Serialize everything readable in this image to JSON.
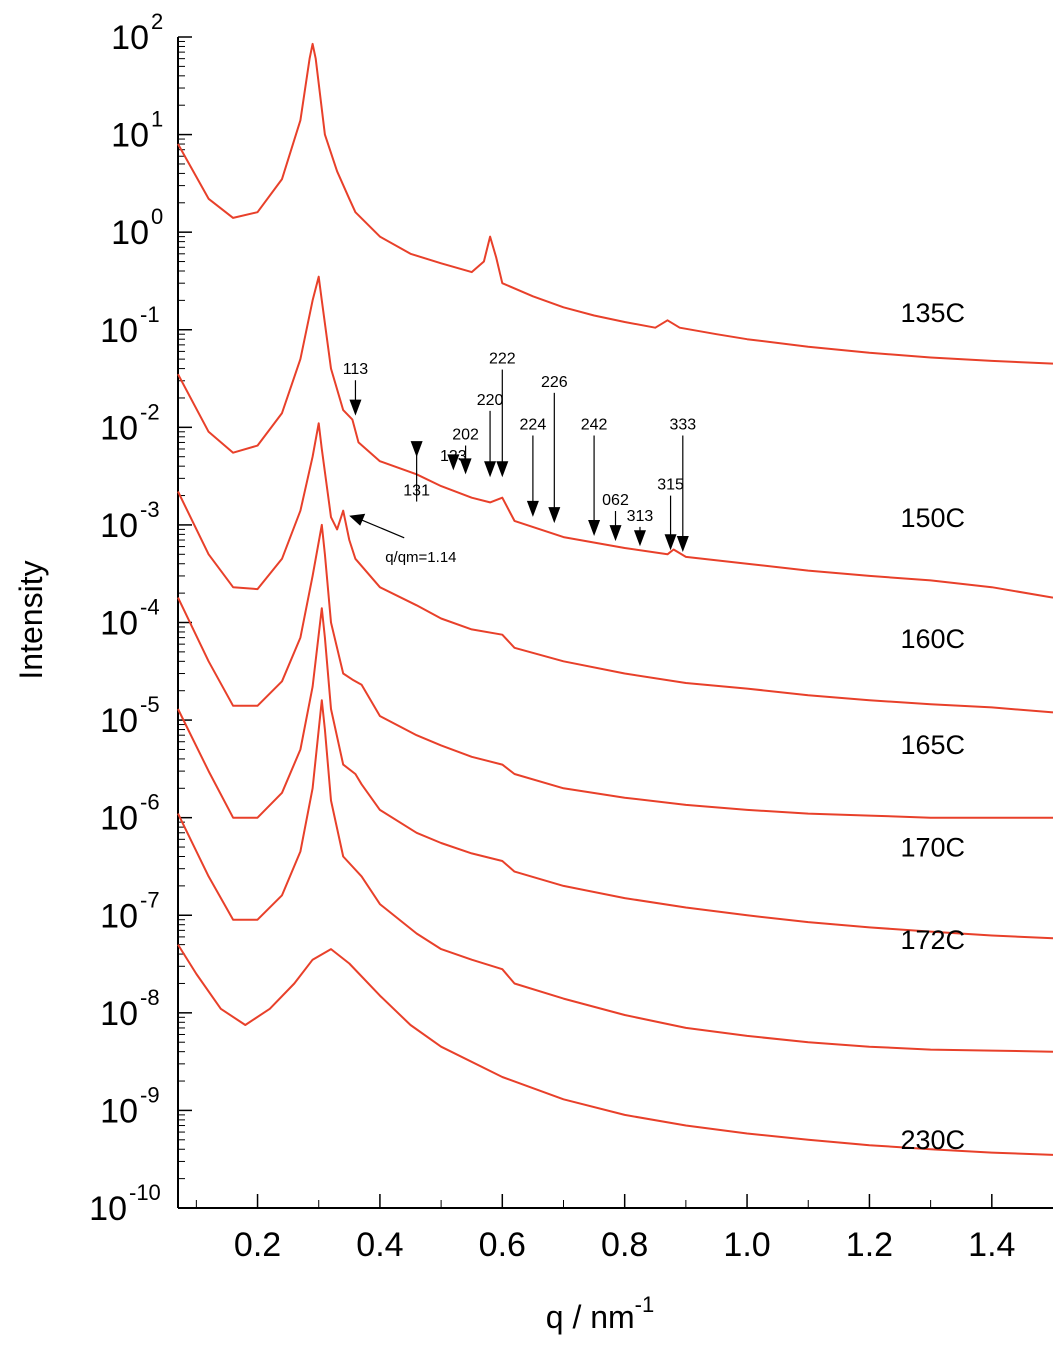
{
  "chart_data": {
    "type": "line",
    "xlabel": "q / nm",
    "xlabel_exp": "-1",
    "ylabel": "Intensity",
    "xlim": [
      0.07,
      1.5
    ],
    "ylim": [
      1e-10,
      100
    ],
    "yscale": "log",
    "grid": false,
    "line_color": "#e8402a",
    "x_ticks": [
      {
        "value": 0.2,
        "label": "0.2"
      },
      {
        "value": 0.4,
        "label": "0.4"
      },
      {
        "value": 0.6,
        "label": "0.6"
      },
      {
        "value": 0.8,
        "label": "0.8"
      },
      {
        "value": 1.0,
        "label": "1.0"
      },
      {
        "value": 1.2,
        "label": "1.2"
      },
      {
        "value": 1.4,
        "label": "1.4"
      }
    ],
    "y_ticks": [
      {
        "exp": 2,
        "base": "10",
        "sup": "2"
      },
      {
        "exp": 1,
        "base": "10",
        "sup": "1"
      },
      {
        "exp": 0,
        "base": "10",
        "sup": "0"
      },
      {
        "exp": -1,
        "base": "10",
        "sup": "-1"
      },
      {
        "exp": -2,
        "base": "10",
        "sup": "-2"
      },
      {
        "exp": -3,
        "base": "10",
        "sup": "-3"
      },
      {
        "exp": -4,
        "base": "10",
        "sup": "-4"
      },
      {
        "exp": -5,
        "base": "10",
        "sup": "-5"
      },
      {
        "exp": -6,
        "base": "10",
        "sup": "-6"
      },
      {
        "exp": -7,
        "base": "10",
        "sup": "-7"
      },
      {
        "exp": -8,
        "base": "10",
        "sup": "-8"
      },
      {
        "exp": -9,
        "base": "10",
        "sup": "-9"
      },
      {
        "exp": -10,
        "base": "10",
        "sup": "-10"
      }
    ],
    "series": [
      {
        "name": "135C",
        "label_y": 0.12,
        "points": [
          [
            0.07,
            8
          ],
          [
            0.12,
            2.2
          ],
          [
            0.16,
            1.4
          ],
          [
            0.2,
            1.6
          ],
          [
            0.24,
            3.5
          ],
          [
            0.27,
            14
          ],
          [
            0.285,
            60
          ],
          [
            0.29,
            85
          ],
          [
            0.295,
            60
          ],
          [
            0.31,
            10
          ],
          [
            0.33,
            4.2
          ],
          [
            0.35,
            2.2
          ],
          [
            0.36,
            1.6
          ],
          [
            0.4,
            0.9
          ],
          [
            0.45,
            0.6
          ],
          [
            0.5,
            0.48
          ],
          [
            0.55,
            0.39
          ],
          [
            0.57,
            0.5
          ],
          [
            0.58,
            0.9
          ],
          [
            0.59,
            0.55
          ],
          [
            0.6,
            0.3
          ],
          [
            0.65,
            0.22
          ],
          [
            0.7,
            0.17
          ],
          [
            0.75,
            0.14
          ],
          [
            0.8,
            0.12
          ],
          [
            0.85,
            0.105
          ],
          [
            0.87,
            0.125
          ],
          [
            0.89,
            0.105
          ],
          [
            0.95,
            0.09
          ],
          [
            1.0,
            0.08
          ],
          [
            1.1,
            0.067
          ],
          [
            1.2,
            0.058
          ],
          [
            1.3,
            0.052
          ],
          [
            1.4,
            0.048
          ],
          [
            1.5,
            0.045
          ]
        ]
      },
      {
        "name": "150C",
        "label_y": 0.00095,
        "points": [
          [
            0.07,
            0.035
          ],
          [
            0.12,
            0.009
          ],
          [
            0.16,
            0.0055
          ],
          [
            0.2,
            0.0065
          ],
          [
            0.24,
            0.014
          ],
          [
            0.27,
            0.05
          ],
          [
            0.29,
            0.2
          ],
          [
            0.3,
            0.35
          ],
          [
            0.305,
            0.2
          ],
          [
            0.32,
            0.04
          ],
          [
            0.34,
            0.015
          ],
          [
            0.355,
            0.012
          ],
          [
            0.365,
            0.007
          ],
          [
            0.4,
            0.0045
          ],
          [
            0.46,
            0.0033
          ],
          [
            0.5,
            0.0025
          ],
          [
            0.55,
            0.0019
          ],
          [
            0.58,
            0.0017
          ],
          [
            0.6,
            0.0019
          ],
          [
            0.62,
            0.0011
          ],
          [
            0.7,
            0.00075
          ],
          [
            0.8,
            0.00058
          ],
          [
            0.87,
            0.0005
          ],
          [
            0.88,
            0.00056
          ],
          [
            0.9,
            0.00047
          ],
          [
            1.0,
            0.0004
          ],
          [
            1.1,
            0.00034
          ],
          [
            1.2,
            0.0003
          ],
          [
            1.3,
            0.00027
          ],
          [
            1.4,
            0.00023
          ],
          [
            1.5,
            0.00018
          ]
        ]
      },
      {
        "name": "160C",
        "label_y": 5.5e-05,
        "points": [
          [
            0.07,
            0.0022
          ],
          [
            0.12,
            0.0005
          ],
          [
            0.16,
            0.00023
          ],
          [
            0.2,
            0.00022
          ],
          [
            0.24,
            0.00045
          ],
          [
            0.27,
            0.0014
          ],
          [
            0.29,
            0.005
          ],
          [
            0.3,
            0.011
          ],
          [
            0.305,
            0.006
          ],
          [
            0.32,
            0.0012
          ],
          [
            0.33,
            0.0009
          ],
          [
            0.34,
            0.0014
          ],
          [
            0.35,
            0.0007
          ],
          [
            0.36,
            0.00045
          ],
          [
            0.4,
            0.00023
          ],
          [
            0.46,
            0.00015
          ],
          [
            0.5,
            0.00011
          ],
          [
            0.55,
            8.5e-05
          ],
          [
            0.6,
            7.5e-05
          ],
          [
            0.62,
            5.5e-05
          ],
          [
            0.7,
            4e-05
          ],
          [
            0.8,
            3e-05
          ],
          [
            0.9,
            2.4e-05
          ],
          [
            1.0,
            2.1e-05
          ],
          [
            1.1,
            1.8e-05
          ],
          [
            1.2,
            1.6e-05
          ],
          [
            1.3,
            1.45e-05
          ],
          [
            1.4,
            1.35e-05
          ],
          [
            1.5,
            1.2e-05
          ]
        ]
      },
      {
        "name": "165C",
        "label_y": 4.5e-06,
        "points": [
          [
            0.07,
            0.00018
          ],
          [
            0.12,
            4e-05
          ],
          [
            0.16,
            1.4e-05
          ],
          [
            0.2,
            1.4e-05
          ],
          [
            0.24,
            2.5e-05
          ],
          [
            0.27,
            7e-05
          ],
          [
            0.29,
            0.0003
          ],
          [
            0.305,
            0.001
          ],
          [
            0.31,
            0.0005
          ],
          [
            0.32,
            0.0001
          ],
          [
            0.34,
            3e-05
          ],
          [
            0.355,
            2.6e-05
          ],
          [
            0.37,
            2.3e-05
          ],
          [
            0.4,
            1.1e-05
          ],
          [
            0.46,
            7e-06
          ],
          [
            0.5,
            5.5e-06
          ],
          [
            0.55,
            4.2e-06
          ],
          [
            0.6,
            3.5e-06
          ],
          [
            0.62,
            2.8e-06
          ],
          [
            0.7,
            2e-06
          ],
          [
            0.8,
            1.6e-06
          ],
          [
            0.9,
            1.35e-06
          ],
          [
            1.0,
            1.2e-06
          ],
          [
            1.1,
            1.1e-06
          ],
          [
            1.2,
            1.05e-06
          ],
          [
            1.3,
            1e-06
          ],
          [
            1.4,
            1e-06
          ],
          [
            1.5,
            1e-06
          ]
        ]
      },
      {
        "name": "170C",
        "label_y": 4e-07,
        "points": [
          [
            0.07,
            1.3e-05
          ],
          [
            0.12,
            3e-06
          ],
          [
            0.16,
            1e-06
          ],
          [
            0.2,
            1e-06
          ],
          [
            0.24,
            1.8e-06
          ],
          [
            0.27,
            5e-06
          ],
          [
            0.29,
            2.2e-05
          ],
          [
            0.305,
            0.00014
          ],
          [
            0.31,
            7e-05
          ],
          [
            0.32,
            1.3e-05
          ],
          [
            0.34,
            3.5e-06
          ],
          [
            0.36,
            2.8e-06
          ],
          [
            0.37,
            2.2e-06
          ],
          [
            0.4,
            1.2e-06
          ],
          [
            0.46,
            7e-07
          ],
          [
            0.5,
            5.5e-07
          ],
          [
            0.55,
            4.3e-07
          ],
          [
            0.6,
            3.6e-07
          ],
          [
            0.62,
            2.8e-07
          ],
          [
            0.7,
            2e-07
          ],
          [
            0.8,
            1.5e-07
          ],
          [
            0.9,
            1.2e-07
          ],
          [
            1.0,
            1e-07
          ],
          [
            1.1,
            8.5e-08
          ],
          [
            1.2,
            7.5e-08
          ],
          [
            1.3,
            6.8e-08
          ],
          [
            1.4,
            6.2e-08
          ],
          [
            1.5,
            5.8e-08
          ]
        ]
      },
      {
        "name": "172C",
        "label_y": 4.5e-08,
        "points": [
          [
            0.07,
            1.1e-06
          ],
          [
            0.12,
            2.5e-07
          ],
          [
            0.16,
            9e-08
          ],
          [
            0.2,
            9e-08
          ],
          [
            0.24,
            1.6e-07
          ],
          [
            0.27,
            4.5e-07
          ],
          [
            0.29,
            2e-06
          ],
          [
            0.305,
            1.6e-05
          ],
          [
            0.31,
            8e-06
          ],
          [
            0.32,
            1.5e-06
          ],
          [
            0.34,
            4e-07
          ],
          [
            0.37,
            2.5e-07
          ],
          [
            0.4,
            1.3e-07
          ],
          [
            0.46,
            6.5e-08
          ],
          [
            0.5,
            4.5e-08
          ],
          [
            0.55,
            3.5e-08
          ],
          [
            0.6,
            2.8e-08
          ],
          [
            0.62,
            2e-08
          ],
          [
            0.7,
            1.4e-08
          ],
          [
            0.8,
            9.5e-09
          ],
          [
            0.9,
            7e-09
          ],
          [
            1.0,
            5.8e-09
          ],
          [
            1.1,
            5e-09
          ],
          [
            1.2,
            4.5e-09
          ],
          [
            1.3,
            4.2e-09
          ],
          [
            1.4,
            4.1e-09
          ],
          [
            1.5,
            4e-09
          ]
        ]
      },
      {
        "name": "230C",
        "label_y": 4e-10,
        "points": [
          [
            0.07,
            5e-08
          ],
          [
            0.1,
            2.5e-08
          ],
          [
            0.14,
            1.1e-08
          ],
          [
            0.18,
            7.5e-09
          ],
          [
            0.22,
            1.1e-08
          ],
          [
            0.26,
            2e-08
          ],
          [
            0.29,
            3.5e-08
          ],
          [
            0.32,
            4.5e-08
          ],
          [
            0.35,
            3.2e-08
          ],
          [
            0.4,
            1.5e-08
          ],
          [
            0.45,
            7.5e-09
          ],
          [
            0.5,
            4.5e-09
          ],
          [
            0.6,
            2.2e-09
          ],
          [
            0.7,
            1.3e-09
          ],
          [
            0.8,
            9e-10
          ],
          [
            0.9,
            7e-10
          ],
          [
            1.0,
            5.8e-10
          ],
          [
            1.1,
            5e-10
          ],
          [
            1.2,
            4.4e-10
          ],
          [
            1.3,
            4e-10
          ],
          [
            1.4,
            3.7e-10
          ],
          [
            1.5,
            3.5e-10
          ]
        ]
      }
    ],
    "peak_annotations": [
      {
        "label": "113",
        "q": 0.36,
        "y": 0.012
      },
      {
        "label": "131",
        "q": 0.46,
        "y": 0.0045
      },
      {
        "label": "133",
        "q": 0.52,
        "y": 0.0033
      },
      {
        "label": "202",
        "q": 0.54,
        "y": 0.003
      },
      {
        "label": "220",
        "q": 0.58,
        "y": 0.0028
      },
      {
        "label": "222",
        "q": 0.6,
        "y": 0.0028
      },
      {
        "label": "224",
        "q": 0.65,
        "y": 0.0011
      },
      {
        "label": "226",
        "q": 0.685,
        "y": 0.00095
      },
      {
        "label": "242",
        "q": 0.75,
        "y": 0.0007
      },
      {
        "label": "062",
        "q": 0.785,
        "y": 0.00062
      },
      {
        "label": "313",
        "q": 0.825,
        "y": 0.00055
      },
      {
        "label": "315",
        "q": 0.875,
        "y": 0.0005
      },
      {
        "label": "333",
        "q": 0.895,
        "y": 0.00048
      }
    ],
    "extra_annotation": {
      "label": "q/qm=1.14",
      "q": 0.34,
      "y": 0.0013
    }
  }
}
